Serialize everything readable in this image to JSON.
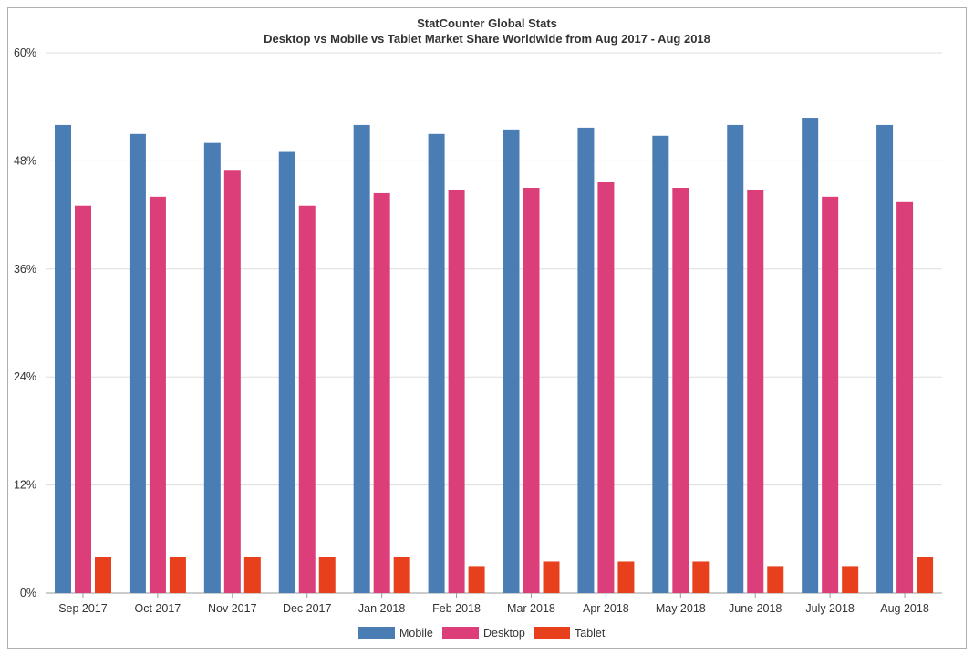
{
  "chart_data": {
    "type": "bar",
    "title": "StatCounter Global Stats",
    "subtitle": "Desktop vs Mobile vs Tablet Market Share Worldwide from Aug 2017 - Aug 2018",
    "categories": [
      "Sep 2017",
      "Oct 2017",
      "Nov 2017",
      "Dec 2017",
      "Jan 2018",
      "Feb 2018",
      "Mar 2018",
      "Apr 2018",
      "May 2018",
      "June 2018",
      "July 2018",
      "Aug 2018"
    ],
    "series": [
      {
        "name": "Mobile",
        "color": "#4a7db4",
        "values": [
          52.0,
          51.0,
          50.0,
          49.0,
          52.0,
          51.0,
          51.5,
          51.7,
          50.8,
          52.0,
          52.8,
          52.0
        ]
      },
      {
        "name": "Desktop",
        "color": "#dc3e79",
        "values": [
          43.0,
          44.0,
          47.0,
          43.0,
          44.5,
          44.8,
          45.0,
          45.7,
          45.0,
          44.8,
          44.0,
          43.5
        ]
      },
      {
        "name": "Tablet",
        "color": "#e8401c",
        "values": [
          4.0,
          4.0,
          4.0,
          4.0,
          4.0,
          3.0,
          3.5,
          3.5,
          3.5,
          3.0,
          3.0,
          4.0
        ]
      }
    ],
    "yticks": [
      "0%",
      "12%",
      "24%",
      "36%",
      "48%",
      "60%"
    ],
    "ylim": [
      0,
      60
    ],
    "grid": true,
    "legend_position": "bottom"
  }
}
